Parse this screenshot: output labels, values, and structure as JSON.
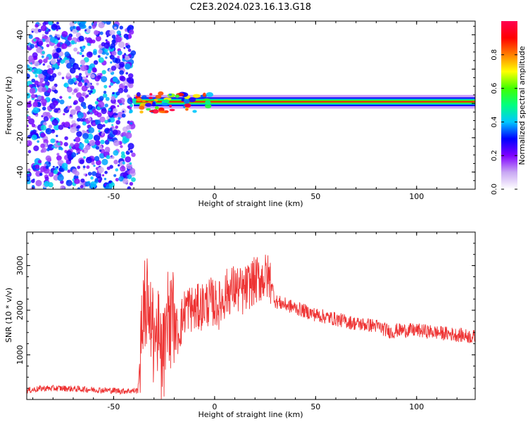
{
  "title": "C2E3.2024.023.16.13.G18",
  "chart_data": [
    {
      "type": "heatmap",
      "xlabel": "Height of straight line (km)",
      "ylabel": "Frequency (Hz)",
      "xlim": [
        -93,
        129
      ],
      "ylim": [
        -50,
        48
      ],
      "xticks": [
        -50,
        0,
        50,
        100
      ],
      "yticks": [
        40,
        20,
        0,
        -20,
        -40
      ],
      "colorbar": {
        "label": "Normalized spectral amplitude",
        "range": [
          0.0,
          1.0
        ],
        "ticks": [
          "0.0",
          "0.2",
          "0.4",
          "0.6",
          "0.8"
        ],
        "tick_values": [
          0.0,
          0.2,
          0.4,
          0.6,
          0.8
        ],
        "colormap": [
          "#ffffff",
          "#c9a8f3",
          "#8000ff",
          "#0000ff",
          "#00c8ff",
          "#00ff80",
          "#40ff00",
          "#ffff00",
          "#ff8000",
          "#ff0000",
          "#ff0050"
        ]
      },
      "noise_region_x": [
        -93,
        -40
      ],
      "signal_x": [
        -40,
        129
      ],
      "signal_frequency": 1,
      "signal_peak_frequency_range": [
        -5,
        6
      ]
    },
    {
      "type": "line",
      "xlabel": "Height of straight line (km)",
      "ylabel": "SNR (10 * v/v)",
      "xlim": [
        -93,
        129
      ],
      "ylim": [
        0,
        3750
      ],
      "xticks": [
        -50,
        0,
        50,
        100
      ],
      "yticks": [
        3000,
        2000,
        1000
      ],
      "color": "#ee3333",
      "series": [
        {
          "x": [
            -93,
            -85,
            -75,
            -65,
            -55,
            -45,
            -38,
            -36,
            -34,
            -30,
            -26,
            -22,
            -18,
            -14,
            -10,
            -6,
            -2,
            2,
            6,
            10,
            14,
            18,
            22,
            26,
            28,
            30,
            40,
            50,
            60,
            70,
            80,
            88,
            90,
            100,
            110,
            120,
            129
          ],
          "y": [
            200,
            250,
            250,
            230,
            210,
            190,
            200,
            1600,
            2000,
            1600,
            1000,
            1800,
            1500,
            2100,
            2000,
            2100,
            2200,
            2100,
            2400,
            2500,
            2400,
            2600,
            2700,
            2750,
            2650,
            2200,
            2050,
            1900,
            1800,
            1700,
            1650,
            1500,
            1550,
            1550,
            1500,
            1450,
            1400
          ]
        }
      ]
    }
  ]
}
